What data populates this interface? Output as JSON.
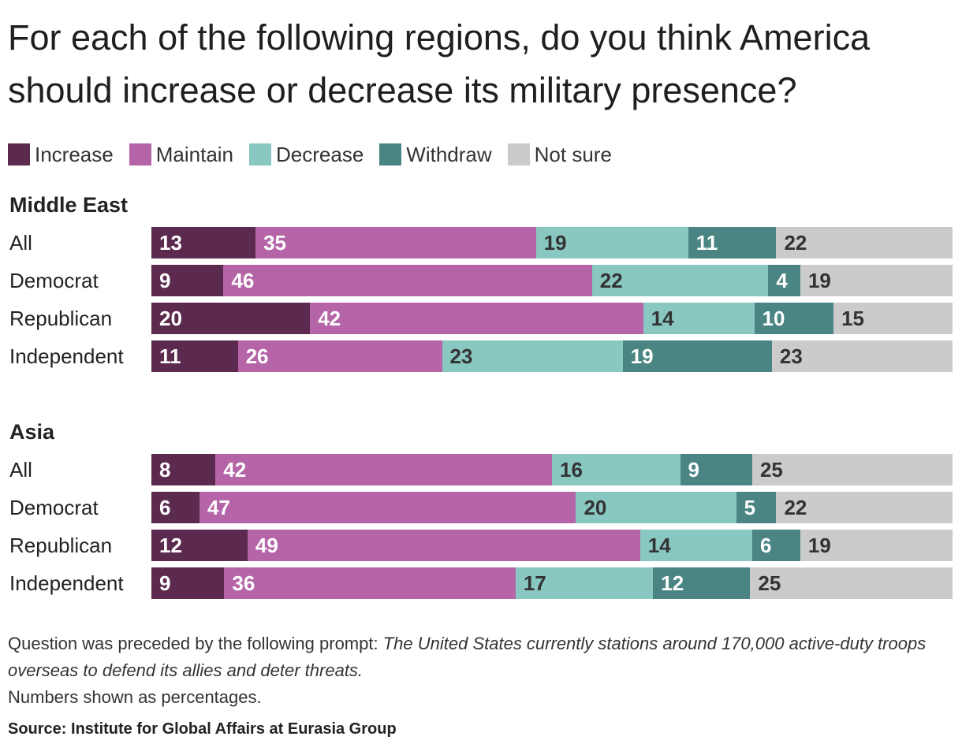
{
  "title": "For each of the following regions, do you think America should increase or decrease its military presence?",
  "legend": [
    {
      "label": "Increase",
      "color": "#5c2a4f"
    },
    {
      "label": "Maintain",
      "color": "#b565a7"
    },
    {
      "label": "Decrease",
      "color": "#89c7c1"
    },
    {
      "label": "Withdraw",
      "color": "#4a8583"
    },
    {
      "label": "Not sure",
      "color": "#cbcbcb"
    }
  ],
  "chart_data": {
    "type": "bar",
    "orientation": "horizontal",
    "stacked": true,
    "value_labels": true,
    "series_names": [
      "Increase",
      "Maintain",
      "Decrease",
      "Withdraw",
      "Not sure"
    ],
    "panels": [
      {
        "title": "Middle East",
        "categories": [
          "All",
          "Democrat",
          "Republican",
          "Independent"
        ],
        "values": [
          [
            13,
            35,
            19,
            11,
            22
          ],
          [
            9,
            46,
            22,
            4,
            19
          ],
          [
            20,
            42,
            14,
            10,
            15
          ],
          [
            11,
            26,
            23,
            19,
            23
          ]
        ]
      },
      {
        "title": "Asia",
        "categories": [
          "All",
          "Democrat",
          "Republican",
          "Independent"
        ],
        "values": [
          [
            8,
            42,
            16,
            9,
            25
          ],
          [
            6,
            47,
            20,
            5,
            22
          ],
          [
            12,
            49,
            14,
            6,
            19
          ],
          [
            9,
            36,
            17,
            12,
            25
          ]
        ]
      }
    ]
  },
  "note": {
    "prefix": "Question was preceded by the following prompt: ",
    "italic": "The United States currently stations around 170,000 active-duty troops overseas to defend its allies and deter threats.",
    "line2": "Numbers shown as percentages."
  },
  "source": "Source: Institute for Global Affairs at Eurasia Group"
}
